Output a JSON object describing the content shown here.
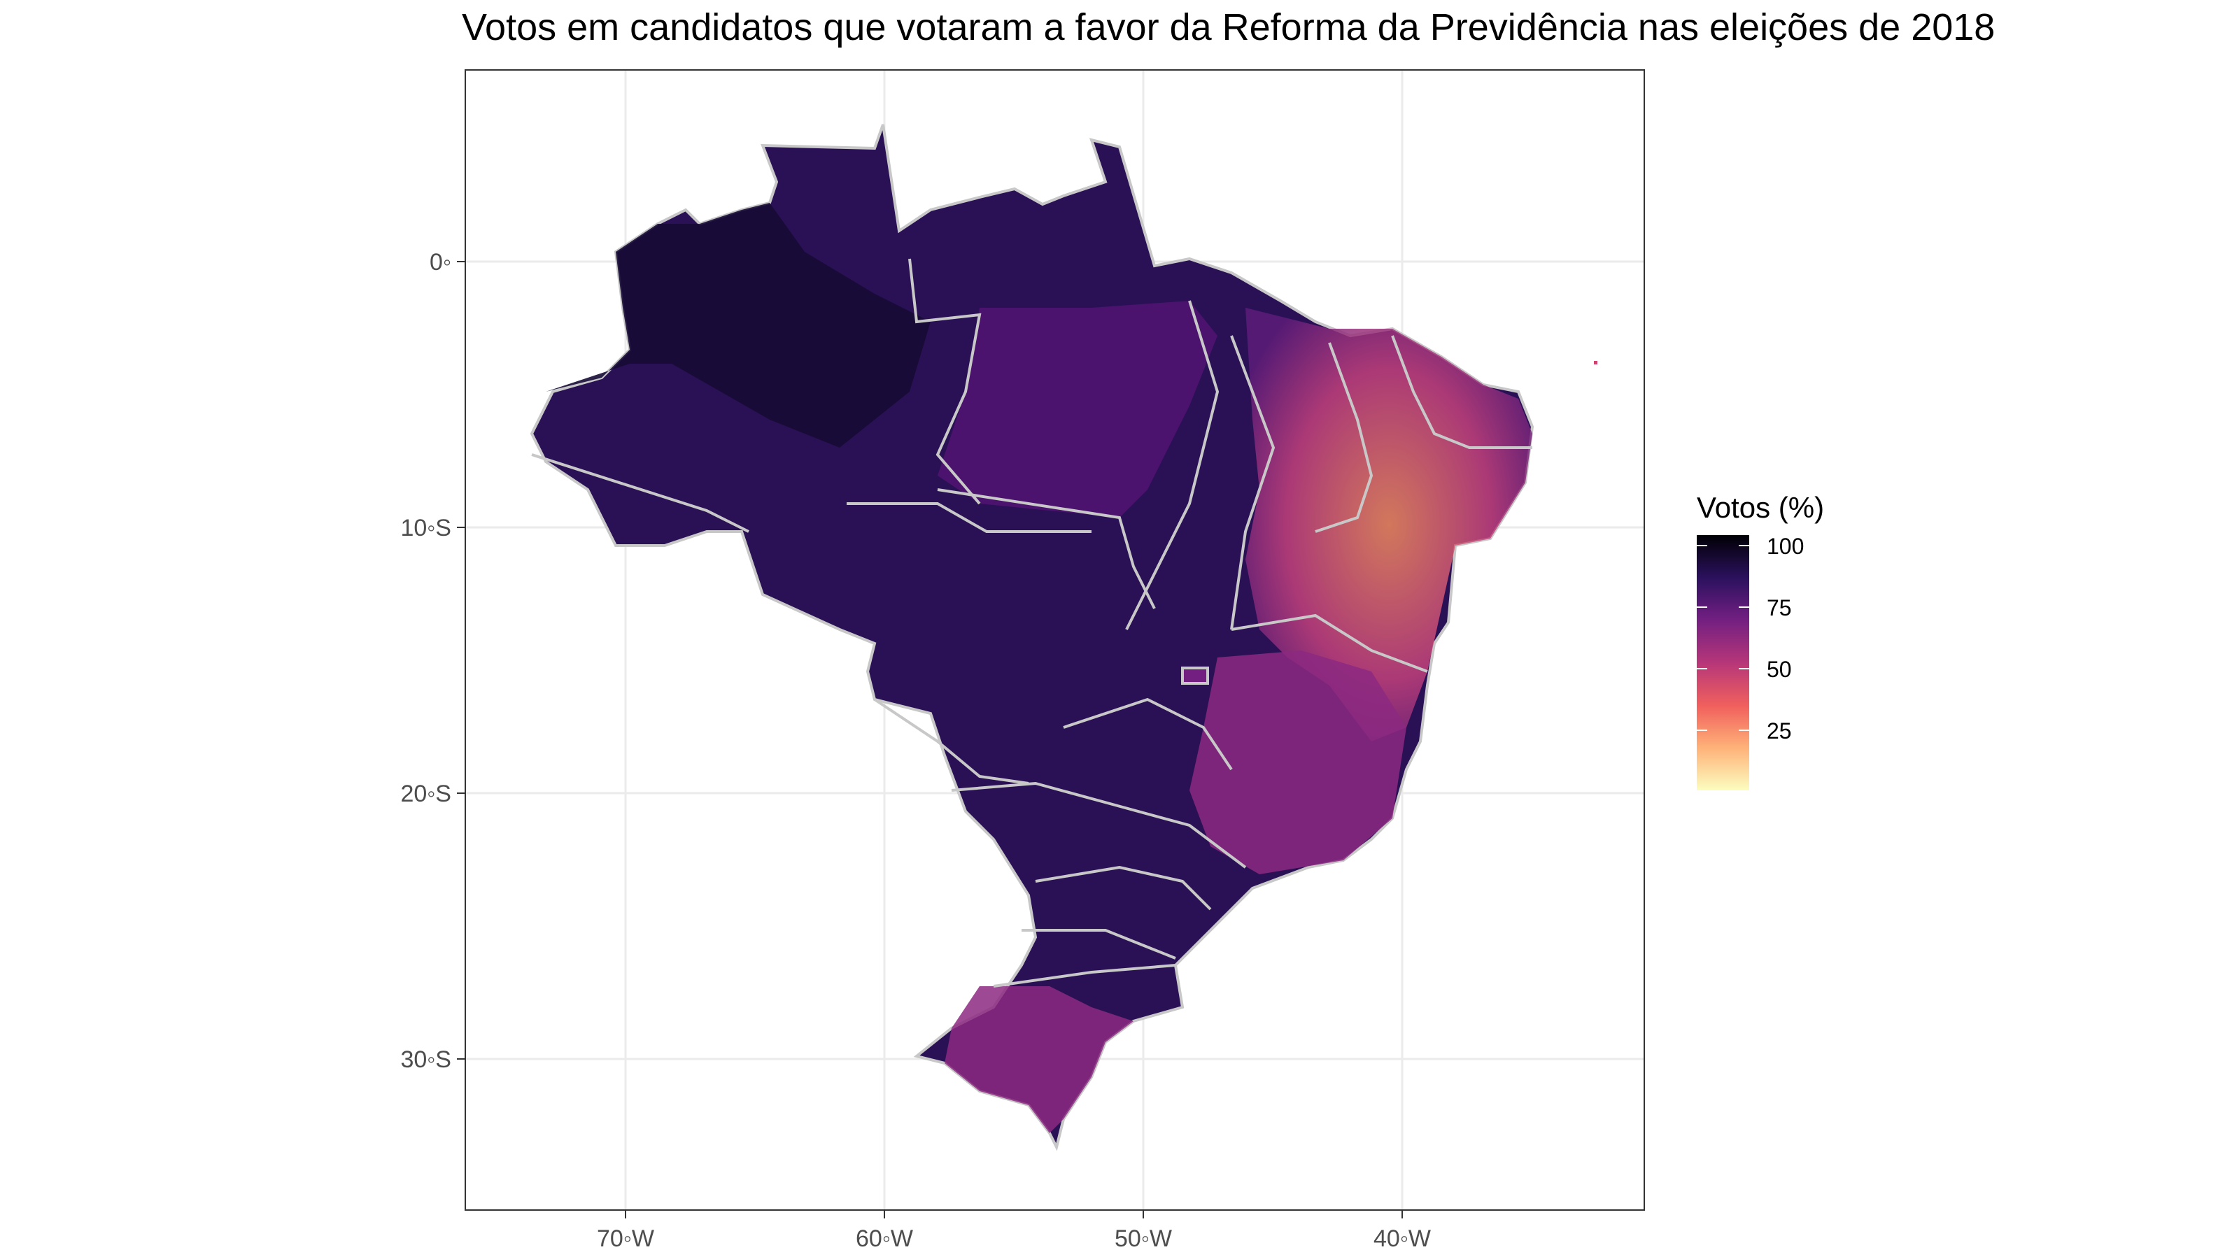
{
  "title": "Votos em candidatos que votaram a favor da Reforma da Previdência nas eleições de 2018",
  "map": {
    "x_ticks": [
      "70◦W",
      "60◦W",
      "50◦W",
      "40◦W"
    ],
    "y_ticks": [
      "0◦",
      "10◦S",
      "20◦S",
      "30◦S"
    ],
    "x_tick_values": [
      -70,
      -60,
      -50,
      -40
    ],
    "y_tick_values": [
      0,
      -10,
      -20,
      -30
    ],
    "lon_range": [
      -76,
      -30.5
    ],
    "lat_range": [
      -35.5,
      6.5
    ],
    "grid": true,
    "region": "Brasil",
    "state_border_color": "#c8c8c8"
  },
  "legend": {
    "title": "Votos (%)",
    "labels": [
      "100",
      "75",
      "50",
      "25"
    ],
    "values": [
      100,
      75,
      50,
      25
    ],
    "range": [
      0,
      100
    ],
    "colors": [
      "#fcfdbf",
      "#feb078",
      "#f1605d",
      "#b63679",
      "#721f81",
      "#2c115f",
      "#000004"
    ],
    "position": "right"
  }
}
